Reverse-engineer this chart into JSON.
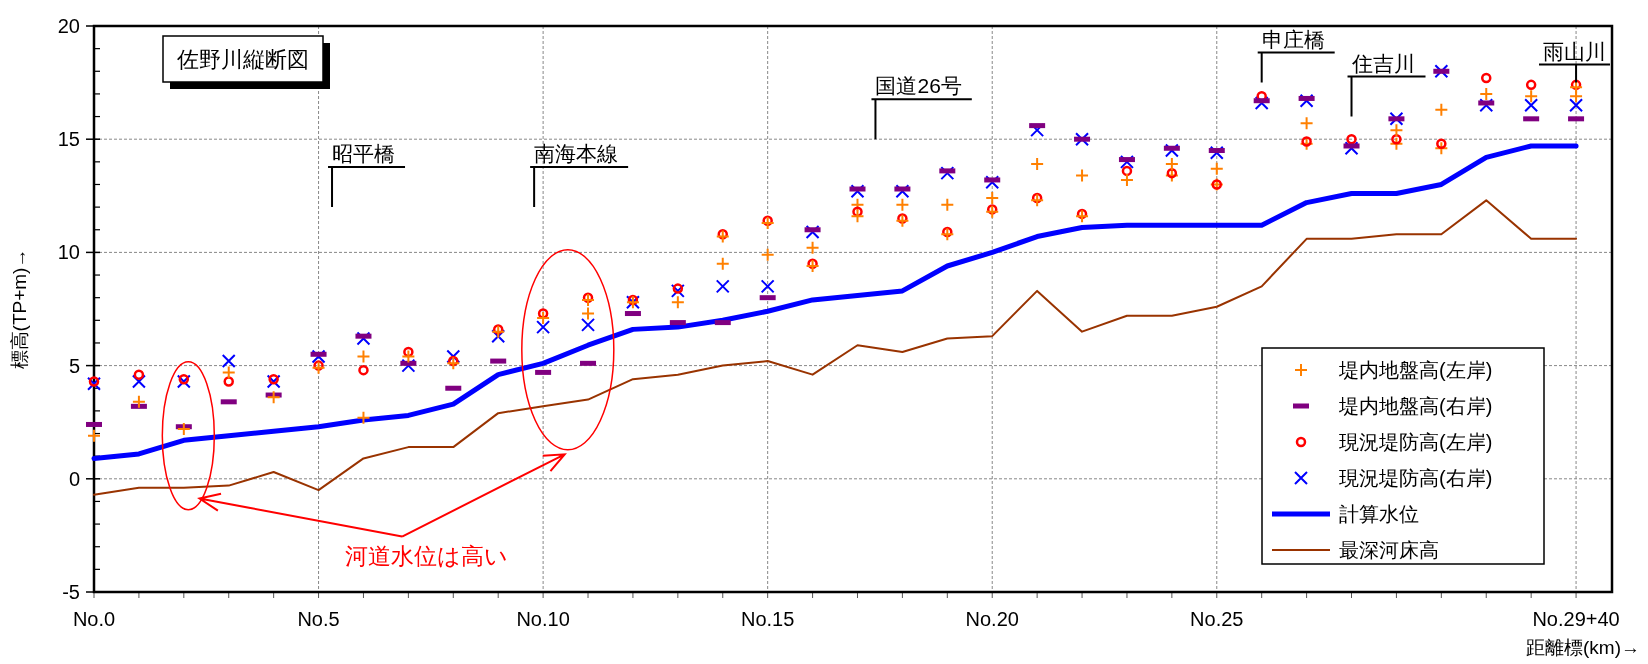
{
  "chart_data": {
    "type": "scatter",
    "title": "佐野川縦断図",
    "xlabel": "距離標(km)→",
    "ylabel": "標高(TP+m)→",
    "categories": [
      "No.0",
      null,
      null,
      null,
      null,
      "No.5",
      null,
      null,
      null,
      null,
      "No.10",
      null,
      null,
      null,
      null,
      "No.15",
      null,
      null,
      null,
      null,
      "No.20",
      null,
      null,
      null,
      null,
      "No.25",
      null,
      null,
      null,
      null,
      null,
      null,
      null,
      "No.29+40"
    ],
    "ylim": [
      -5,
      20
    ],
    "yticks": [
      -5,
      {
        "value": -4,
        "label": null
      },
      {
        "value": -3,
        "label": null
      },
      {
        "value": -2,
        "label": null
      },
      {
        "value": -1,
        "label": null
      },
      0,
      {
        "value": 1,
        "label": null
      },
      {
        "value": 2,
        "label": null
      },
      {
        "value": 3,
        "label": null
      },
      {
        "value": 4,
        "label": null
      },
      5,
      {
        "value": 6,
        "label": null
      },
      {
        "value": 7,
        "label": null
      },
      {
        "value": 8,
        "label": null
      },
      {
        "value": 9,
        "label": null
      },
      10,
      {
        "value": 11,
        "label": null
      },
      {
        "value": 12,
        "label": null
      },
      {
        "value": 13,
        "label": null
      },
      {
        "value": 14,
        "label": null
      },
      15,
      {
        "value": 16,
        "label": null
      },
      {
        "value": 17,
        "label": null
      },
      {
        "value": 18,
        "label": null
      },
      {
        "value": 19,
        "label": null
      },
      20
    ],
    "grid": true,
    "legend": "bottom right",
    "series": [
      {
        "name": "堤内地盤高(左岸)",
        "color": "#ff8000",
        "marker": "plus",
        "values": [
          1.9,
          3.4,
          2.2,
          4.7,
          3.6,
          4.9,
          5.4,
          5.4,
          5.1,
          6.5,
          7.1,
          7.9,
          7.8,
          7.8,
          10.7,
          11.3,
          9.4,
          11.6,
          11.4,
          10.8,
          11.8,
          12.3,
          11.6,
          13.2,
          13.9,
          13.7,
          null,
          15.7,
          null,
          15.4,
          16.3,
          17.0,
          16.9,
          17.3
        ]
      },
      {
        "name": "堤内地盤高(右岸)",
        "color": "#800080",
        "marker": "square",
        "values": [
          2.4,
          3.2,
          2.3,
          3.4,
          3.7,
          5.5,
          6.3,
          5.1,
          4.0,
          5.2,
          4.7,
          5.1,
          7.3,
          6.9,
          6.9,
          8.0,
          11.0,
          12.8,
          12.8,
          13.6,
          13.2,
          15.6,
          15.0,
          14.1,
          14.6,
          14.5,
          16.7,
          16.8,
          14.7,
          15.9,
          18.0,
          16.6,
          15.9,
          15.9
        ]
      },
      {
        "name": "現況堤防高(左岸)",
        "color": "#ff0000",
        "marker": "circle",
        "values": [
          4.3,
          4.6,
          4.4,
          4.3,
          4.4,
          5.0,
          4.8,
          5.6,
          5.2,
          6.6,
          7.3,
          8.0,
          7.9,
          8.4,
          10.8,
          11.4,
          9.5,
          11.8,
          11.5,
          10.9,
          11.9,
          12.4,
          11.7,
          13.6,
          13.5,
          13.0,
          16.9,
          14.9,
          15.0,
          15.0,
          14.8,
          17.7,
          17.4,
          17.4
        ]
      },
      {
        "name": "現況堤防高(右岸)",
        "color": "#0000ff",
        "marker": "cross",
        "values": [
          4.2,
          4.3,
          4.3,
          5.2,
          4.3,
          5.4,
          6.2,
          5.0,
          5.4,
          6.3,
          6.7,
          6.8,
          7.8,
          8.3,
          8.5,
          8.5,
          10.9,
          12.7,
          12.7,
          13.5,
          13.1,
          15.4,
          15.0,
          14.0,
          14.5,
          14.4,
          16.6,
          16.7,
          14.6,
          15.9,
          18.0,
          16.5,
          16.5,
          16.5
        ]
      },
      {
        "name": "計算水位",
        "color": "#0000ff",
        "type": "line",
        "values": [
          0.9,
          1.1,
          1.7,
          1.9,
          2.1,
          2.3,
          2.6,
          2.8,
          3.3,
          4.6,
          5.1,
          5.9,
          6.6,
          6.7,
          7.0,
          7.4,
          7.9,
          8.1,
          8.3,
          9.4,
          10.0,
          10.7,
          11.1,
          11.2,
          11.2,
          11.2,
          11.2,
          12.2,
          12.6,
          12.6,
          13.0,
          14.2,
          14.7,
          14.7
        ]
      },
      {
        "name": "最深河床高",
        "color": "#993300",
        "type": "line",
        "values": [
          -0.7,
          -0.4,
          -0.4,
          -0.3,
          0.3,
          -0.5,
          0.9,
          1.4,
          1.4,
          2.9,
          3.2,
          3.5,
          4.4,
          4.6,
          5.0,
          5.2,
          4.6,
          5.9,
          5.6,
          6.2,
          6.3,
          8.3,
          6.5,
          7.2,
          7.2,
          7.6,
          8.5,
          10.6,
          10.6,
          10.8,
          10.8,
          12.3,
          10.6,
          10.6
        ]
      },
      {
        "color": "#ff8000",
        "marker": "plus",
        "values": [
          null,
          null,
          null,
          null,
          null,
          null,
          2.7,
          null,
          null,
          null,
          null,
          7.3,
          null,
          null,
          9.5,
          9.9,
          10.2,
          12.1,
          12.1,
          12.1,
          12.4,
          13.9,
          13.4,
          null,
          13.4,
          13.0,
          null,
          14.8,
          null,
          14.8,
          14.6,
          null,
          null,
          16.9
        ]
      }
    ],
    "annotations": [
      "昭平橋",
      "南海本線",
      "国道26号",
      "申庄橋",
      "住吉川",
      {
        "text": "雨山川",
        "y": 17.5
      },
      "河道水位は高い"
    ]
  }
}
